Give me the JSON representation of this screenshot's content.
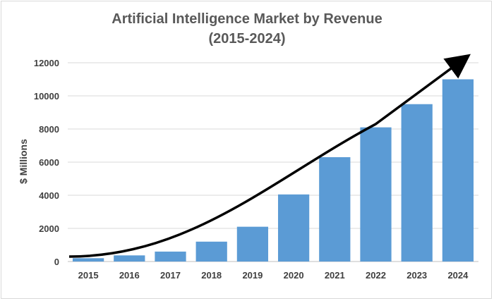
{
  "chart_data": {
    "type": "bar",
    "title_line1": "Artificial Intelligence Market by Revenue",
    "title_line2": "(2015-2024)",
    "xlabel": "",
    "ylabel": "$ Millions",
    "categories": [
      "2015",
      "2016",
      "2017",
      "2018",
      "2019",
      "2020",
      "2021",
      "2022",
      "2023",
      "2024"
    ],
    "values": [
      200,
      370,
      600,
      1200,
      2100,
      4050,
      6300,
      8100,
      9500,
      11000
    ],
    "ylim": [
      0,
      12000
    ],
    "yticks": [
      0,
      2000,
      4000,
      6000,
      8000,
      10000,
      12000
    ],
    "grid": true,
    "legend": "none",
    "bar_color": "#5b9bd5",
    "trend_arrow": true,
    "trend_color": "#000000"
  }
}
